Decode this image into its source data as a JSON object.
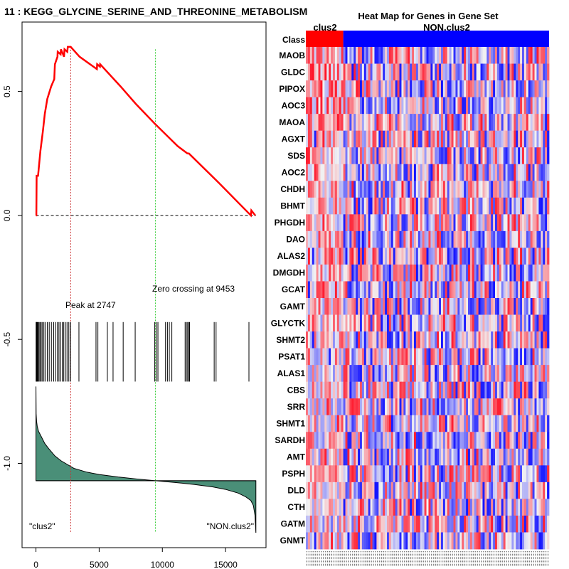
{
  "gsea": {
    "title": "11 : KEGG_GLYCINE_SERINE_AND_THREONINE_METABOLISM",
    "peak_label": "Peak at 2747",
    "peak_rank": 2747,
    "zero_crossing_label": "Zero crossing at 9453",
    "zero_crossing_rank": 9453,
    "left_class_label": "\"clus2\"",
    "right_class_label": "\"NON.clus2\"",
    "colors": {
      "es_line": "#ff0000",
      "peak_line": "#cc3333",
      "zero_line": "#33cc33",
      "ranked_fill": "#4a8f78"
    }
  },
  "heatmap_texts": {
    "title": "Heat Map for Genes in Gene Set",
    "class_row_label": "Class",
    "group1_label": "clus2",
    "group2_label": "NON.clus2",
    "group1_color": "#ff0000",
    "group2_color": "#0000ff"
  },
  "chart_data": [
    {
      "type": "line",
      "title": "11 : KEGG_GLYCINE_SERINE_AND_THREONINE_METABOLISM",
      "xlabel": "",
      "ylabel": "",
      "xlim": [
        -1100,
        18200
      ],
      "ylim": [
        -1.34,
        0.78
      ],
      "xticks": [
        0,
        5000,
        10000,
        15000
      ],
      "xtick_labels": [
        "0",
        "5000",
        "10000",
        "15000"
      ],
      "yticks": [
        0.5,
        0.0,
        -0.5,
        -1.0
      ],
      "ytick_labels": [
        "0.5",
        "0.0",
        "-0.5",
        "-1.0"
      ],
      "grid": false,
      "series": [
        {
          "name": "Running enrichment score",
          "x": [
            0,
            30,
            55,
            165,
            350,
            550,
            700,
            900,
            1200,
            1450,
            1500,
            1700,
            1720,
            1950,
            1980,
            2220,
            2260,
            2480,
            2520,
            2747,
            3450,
            4820,
            4840,
            5060,
            5080,
            6700,
            7900,
            9400,
            11200,
            11980,
            12100,
            14500,
            17000,
            17040,
            17350
          ],
          "y": [
            0.0,
            0.0,
            0.16,
            0.16,
            0.26,
            0.34,
            0.41,
            0.47,
            0.52,
            0.55,
            0.61,
            0.64,
            0.66,
            0.65,
            0.67,
            0.64,
            0.67,
            0.66,
            0.68,
            0.68,
            0.64,
            0.59,
            0.61,
            0.6,
            0.61,
            0.52,
            0.45,
            0.37,
            0.28,
            0.25,
            0.25,
            0.13,
            0.0,
            0.02,
            0.0
          ]
        }
      ],
      "reference_lines": [
        {
          "name": "baseline",
          "y": 0.0
        },
        {
          "name": "peak",
          "x": 2747
        },
        {
          "name": "zero crossing",
          "x": 9453
        }
      ],
      "hit_positions": [
        10,
        40,
        80,
        130,
        180,
        250,
        330,
        420,
        520,
        630,
        760,
        900,
        1050,
        1220,
        1400,
        1560,
        1700,
        1820,
        1950,
        2080,
        2200,
        2330,
        2460,
        2600,
        2747,
        3400,
        4750,
        4900,
        5650,
        6100,
        6900,
        7850,
        9400,
        9520,
        9650,
        10250,
        10400,
        10550,
        10750,
        11800,
        11900,
        12000,
        12100,
        12150,
        14100,
        14250,
        16850
      ],
      "hit_marks_y": [
        -0.43,
        -0.67
      ],
      "ranked_metric": {
        "name": "Ranked list metric (scaled)",
        "baseline_y": -1.07,
        "x": [
          0,
          15,
          50,
          100,
          200,
          400,
          700,
          1000,
          1500,
          2000,
          3000,
          4000,
          5000,
          6500,
          8000,
          9453,
          11000,
          12500,
          14000,
          15000,
          16000,
          16600,
          17000,
          17200,
          17330,
          17400
        ],
        "y": [
          -0.69,
          -0.8,
          -0.83,
          -0.85,
          -0.87,
          -0.89,
          -0.92,
          -0.94,
          -0.97,
          -0.99,
          -1.02,
          -1.035,
          -1.045,
          -1.055,
          -1.063,
          -1.07,
          -1.077,
          -1.085,
          -1.095,
          -1.105,
          -1.12,
          -1.135,
          -1.15,
          -1.17,
          -1.21,
          -1.28
        ]
      }
    },
    {
      "type": "heatmap",
      "title": "Heat Map for Genes in Gene Set",
      "row_labels": [
        "MAOB",
        "GLDC",
        "PIPOX",
        "AOC3",
        "MAOA",
        "AGXT",
        "SDS",
        "AOC2",
        "CHDH",
        "BHMT",
        "PHGDH",
        "DAO",
        "ALAS2",
        "DMGDH",
        "GCAT",
        "GAMT",
        "GLYCTK",
        "SHMT2",
        "PSAT1",
        "ALAS1",
        "CBS",
        "SRR",
        "SHMT1",
        "SARDH",
        "AMT",
        "PSPH",
        "DLD",
        "CTH",
        "GATM",
        "GNMT"
      ],
      "class_groups": [
        {
          "name": "clus2",
          "n_samples": 18,
          "color": "#ff0000"
        },
        {
          "name": "NON.clus2",
          "n_samples": 99,
          "color": "#0000ff"
        }
      ],
      "n_columns": 117,
      "color_scale": {
        "low": "#0000ff",
        "mid": "#f2f2f2",
        "high": "#ff0000"
      },
      "cell_values": "per-cell expression z-scores (range -1 to 1) not individually legible in source image; rendered as reproducible pseudo-random field biased positive for clus2"
    }
  ]
}
